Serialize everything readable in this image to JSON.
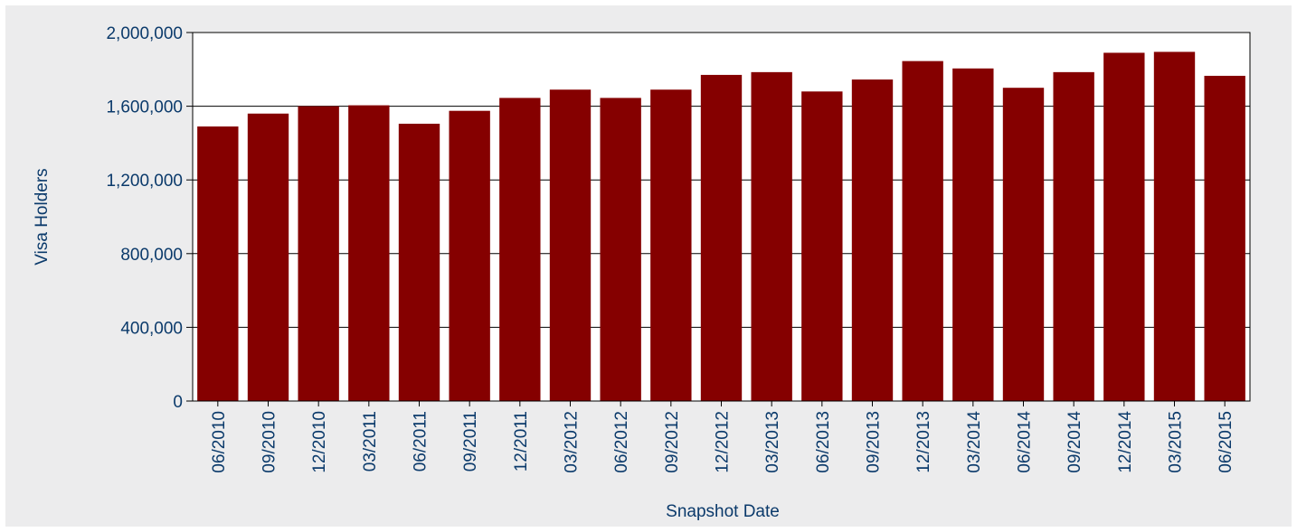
{
  "chart_data": {
    "type": "bar",
    "xlabel": "Snapshot Date",
    "ylabel": "Visa Holders",
    "ylim": [
      0,
      2000000
    ],
    "yticks": [
      0,
      400000,
      800000,
      1200000,
      1600000,
      2000000
    ],
    "ytick_labels": [
      "0",
      "400,000",
      "800,000",
      "1,200,000",
      "1,600,000",
      "2,000,000"
    ],
    "grid": true,
    "legend": "none",
    "bar_color": "#850000",
    "categories": [
      "06/2010",
      "09/2010",
      "12/2010",
      "03/2011",
      "06/2011",
      "09/2011",
      "12/2011",
      "03/2012",
      "06/2012",
      "09/2012",
      "12/2012",
      "03/2013",
      "06/2013",
      "09/2013",
      "12/2013",
      "03/2014",
      "06/2014",
      "09/2014",
      "12/2014",
      "03/2015",
      "06/2015"
    ],
    "values": [
      1490000,
      1560000,
      1600000,
      1605000,
      1505000,
      1575000,
      1645000,
      1690000,
      1645000,
      1690000,
      1770000,
      1785000,
      1680000,
      1745000,
      1845000,
      1805000,
      1700000,
      1785000,
      1890000,
      1895000,
      1765000
    ]
  }
}
